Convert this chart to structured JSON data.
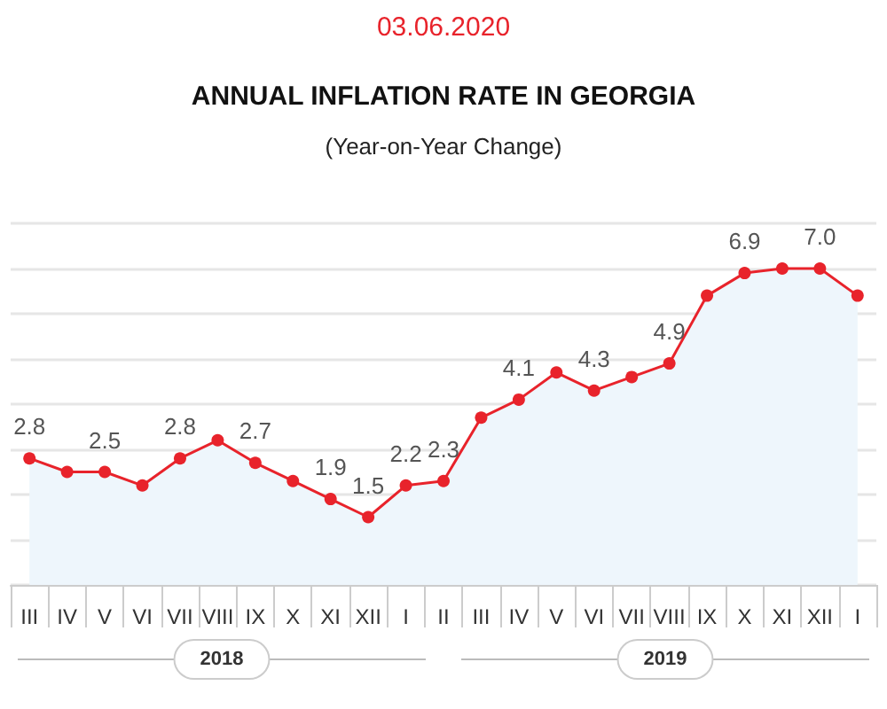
{
  "chart_data": {
    "type": "area",
    "title": "ANNUAL INFLATION RATE IN GEORGIA",
    "subtitle": "(Year-on-Year Change)",
    "annotations": [
      "03.06.2020",
      "2018",
      "2019"
    ],
    "categories": [
      "III",
      "IV",
      "V",
      "VI",
      "VII",
      "VIII",
      "IX",
      "X",
      "XI",
      "XII",
      "I",
      "II",
      "III",
      "IV",
      "V",
      "VI",
      "VII",
      "VIII",
      "IX",
      "X",
      "XI",
      "XII",
      "I"
    ],
    "series": [
      {
        "color": "#e8232b",
        "values": [
          2.8,
          2.5,
          2.5,
          2.2,
          2.8,
          3.2,
          2.7,
          2.3,
          1.9,
          1.5,
          2.2,
          2.3,
          3.7,
          4.1,
          4.7,
          4.3,
          4.6,
          4.9,
          6.4,
          6.9,
          7.0,
          7.0,
          6.4
        ],
        "value_labels": [
          "2.8",
          null,
          "2.5",
          null,
          "2.8",
          null,
          "2.7",
          null,
          "1.9",
          "1.5",
          "2.2",
          "2.3",
          null,
          "4.1",
          null,
          "4.3",
          null,
          "4.9",
          null,
          "6.9",
          null,
          "7.0",
          null
        ]
      }
    ],
    "ylim": [
      0,
      8
    ],
    "yticks": [
      {
        "value": 0,
        "label": null
      },
      {
        "value": 1,
        "label": null
      },
      {
        "value": 2,
        "label": null
      },
      {
        "value": 3,
        "label": null
      },
      {
        "value": 4,
        "label": null
      },
      {
        "value": 5,
        "label": null
      },
      {
        "value": 6,
        "label": null
      },
      {
        "value": 7,
        "label": null
      },
      {
        "value": 8,
        "label": null
      }
    ],
    "tick_labels": "x",
    "grid": "y",
    "marker": "circle",
    "line_style": "solid"
  }
}
